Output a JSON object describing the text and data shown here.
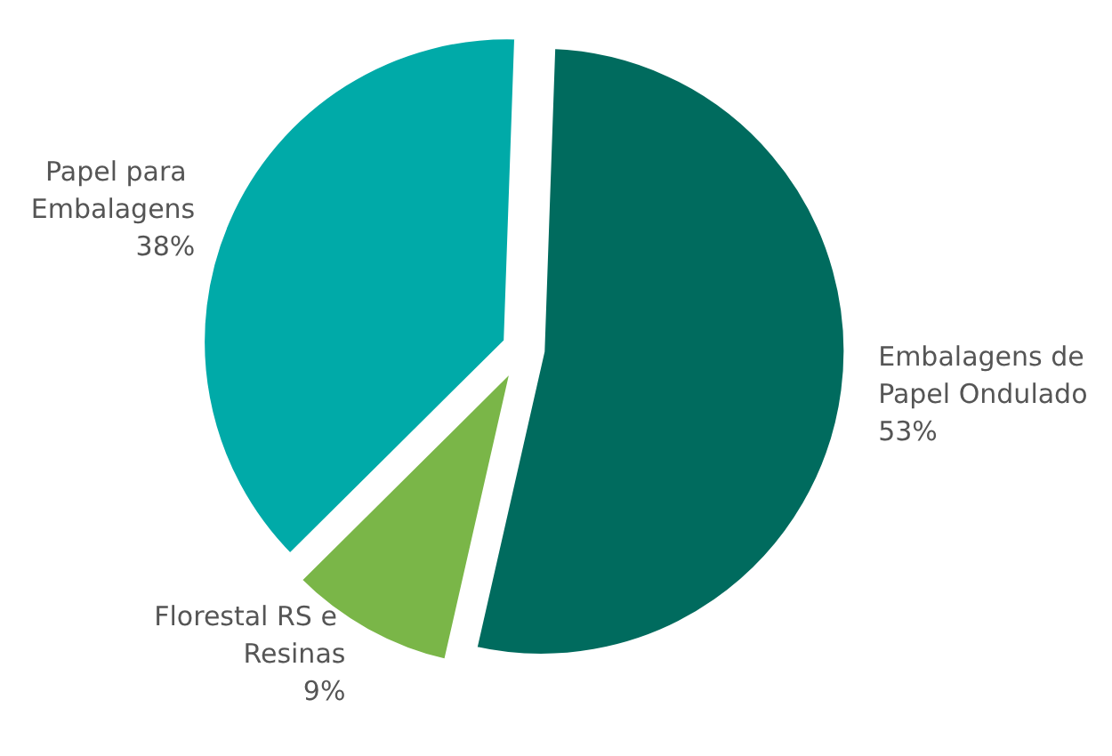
{
  "chart_data": {
    "type": "pie",
    "categories": [
      "Embalagens de Papel Ondulado",
      "Florestal RS e Resinas",
      "Papel para Embalagens"
    ],
    "values": [
      53,
      9,
      38
    ],
    "value_labels": [
      "53%",
      "9%",
      "38%"
    ],
    "colors": [
      "#006b5e",
      "#7ab648",
      "#00aaa8"
    ],
    "legend": false
  }
}
